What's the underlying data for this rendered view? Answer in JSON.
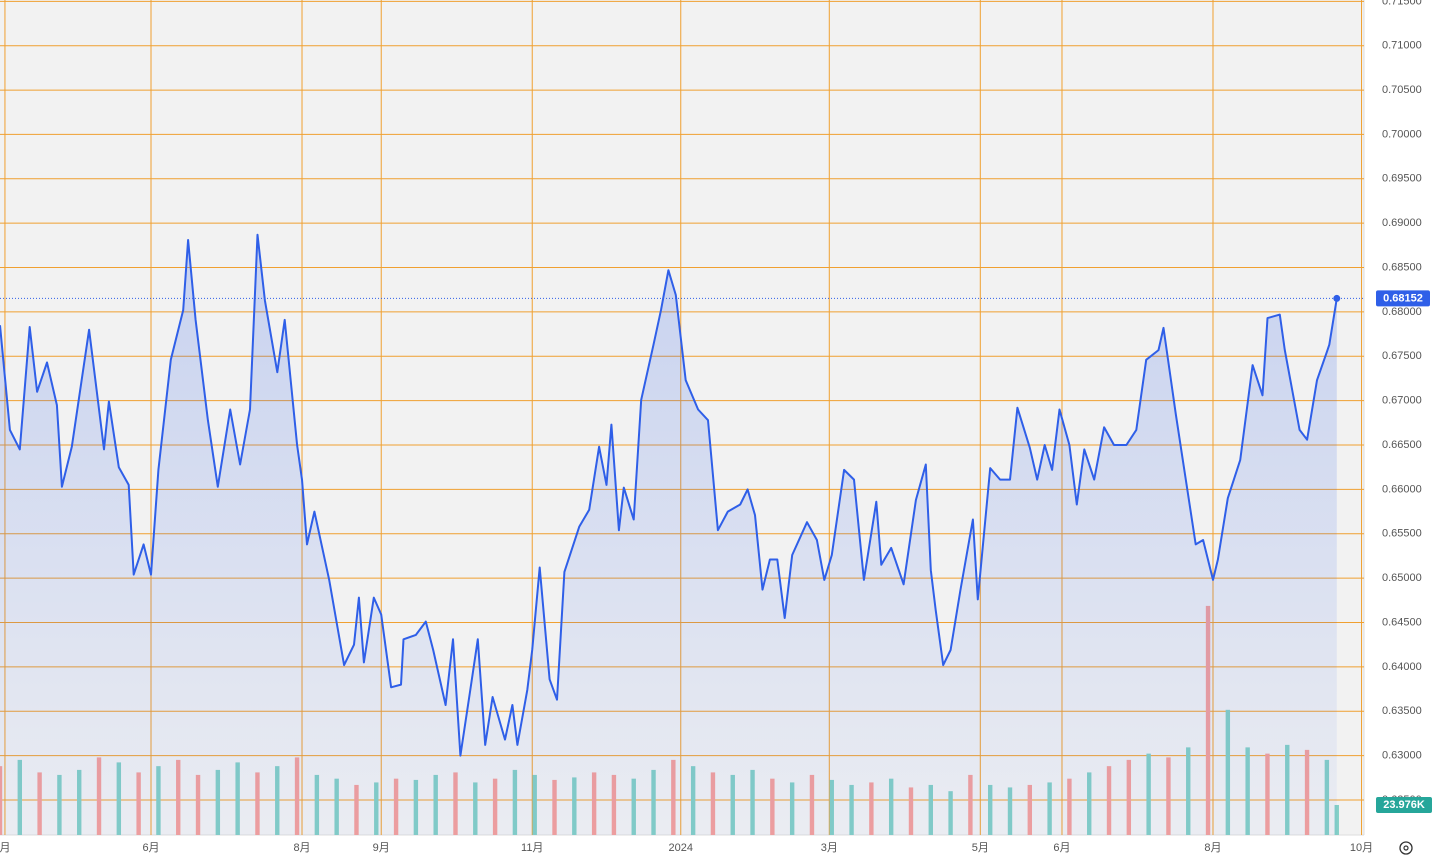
{
  "chart_data": {
    "type": "line",
    "line_color": "#2f5fe8",
    "area_color": "#2f5fe8",
    "grid": true,
    "grid_color": "#f0a030",
    "x": [
      0,
      4,
      8,
      12,
      15,
      19,
      23,
      25,
      29,
      36,
      42,
      44,
      48,
      52,
      54,
      58,
      61,
      64,
      69,
      74,
      76,
      79,
      84,
      88,
      93,
      97,
      101,
      104,
      107,
      112,
      115,
      120,
      122,
      124,
      127,
      133,
      139,
      143,
      145,
      147,
      151,
      154,
      158,
      162,
      163,
      168,
      172,
      175,
      180,
      183,
      186,
      190,
      193,
      196,
      199,
      204,
      207,
      209,
      213,
      215,
      218,
      222,
      225,
      228,
      234,
      238,
      242,
      245,
      247,
      250,
      252,
      256,
      259,
      264,
      267,
      270,
      273,
      277,
      282,
      286,
      290,
      294,
      299,
      302,
      305,
      308,
      311,
      314,
      317,
      320,
      326,
      330,
      333,
      336,
      341,
      345,
      349,
      354,
      356,
      360,
      365,
      370,
      374,
      376,
      378,
      381,
      384,
      388,
      393,
      395,
      400,
      404,
      408,
      411,
      416,
      419,
      422,
      425,
      428,
      432,
      435,
      438,
      442,
      446,
      450,
      455,
      459,
      463,
      468,
      470,
      475,
      479,
      483,
      486,
      490,
      492,
      496,
      501,
      506,
      510,
      512,
      517,
      519,
      522,
      525,
      528,
      532,
      536,
      537,
      540
    ],
    "values": [
      0.6785,
      0.6667,
      0.6645,
      0.6783,
      0.671,
      0.6743,
      0.6695,
      0.6603,
      0.6648,
      0.678,
      0.6645,
      0.6699,
      0.6625,
      0.6605,
      0.6504,
      0.6538,
      0.6504,
      0.6622,
      0.6746,
      0.6802,
      0.6881,
      0.6791,
      0.6678,
      0.6603,
      0.669,
      0.6628,
      0.669,
      0.6887,
      0.6813,
      0.6732,
      0.6791,
      0.665,
      0.6611,
      0.6538,
      0.6575,
      0.6498,
      0.6402,
      0.6425,
      0.6478,
      0.6405,
      0.6478,
      0.6459,
      0.6377,
      0.638,
      0.6431,
      0.6436,
      0.6451,
      0.6419,
      0.6357,
      0.6431,
      0.63,
      0.6374,
      0.6431,
      0.6312,
      0.6366,
      0.6318,
      0.6357,
      0.6312,
      0.6374,
      0.6419,
      0.6512,
      0.6386,
      0.6363,
      0.6507,
      0.6558,
      0.6577,
      0.6648,
      0.6605,
      0.6673,
      0.6554,
      0.6602,
      0.6566,
      0.6701,
      0.6763,
      0.6802,
      0.6847,
      0.6819,
      0.6723,
      0.669,
      0.6678,
      0.6554,
      0.6575,
      0.6583,
      0.66,
      0.6571,
      0.6487,
      0.6521,
      0.6521,
      0.6455,
      0.6526,
      0.6563,
      0.6543,
      0.6498,
      0.6526,
      0.6622,
      0.6611,
      0.6498,
      0.6586,
      0.6515,
      0.6534,
      0.6493,
      0.6588,
      0.6628,
      0.6509,
      0.6464,
      0.6402,
      0.6419,
      0.6487,
      0.6566,
      0.6476,
      0.6624,
      0.6611,
      0.6611,
      0.6692,
      0.6647,
      0.6611,
      0.665,
      0.6622,
      0.669,
      0.665,
      0.6583,
      0.6645,
      0.6611,
      0.667,
      0.665,
      0.665,
      0.6667,
      0.6746,
      0.6757,
      0.6782,
      0.6684,
      0.6611,
      0.6538,
      0.6543,
      0.6498,
      0.6521,
      0.659,
      0.6633,
      0.674,
      0.6706,
      0.6793,
      0.6797,
      0.6757,
      0.6712,
      0.6667,
      0.6656,
      0.6723,
      0.6755,
      0.6763,
      0.68152
    ],
    "xlim": [
      0,
      551
    ],
    "xticks": [
      {
        "value": 2,
        "label": "月"
      },
      {
        "value": 61,
        "label": "6月"
      },
      {
        "value": 122,
        "label": "8月"
      },
      {
        "value": 154,
        "label": "9月"
      },
      {
        "value": 215,
        "label": "11月"
      },
      {
        "value": 275,
        "label": "2024"
      },
      {
        "value": 335,
        "label": "3月"
      },
      {
        "value": 396,
        "label": "5月"
      },
      {
        "value": 429,
        "label": "6月"
      },
      {
        "value": 490,
        "label": "8月"
      },
      {
        "value": 550,
        "label": "10月"
      }
    ],
    "ylim": [
      0.62105,
      0.71515
    ],
    "yticks": [
      {
        "value": 0.625,
        "label": "0.62500"
      },
      {
        "value": 0.63,
        "label": "0.63000"
      },
      {
        "value": 0.635,
        "label": "0.63500"
      },
      {
        "value": 0.64,
        "label": "0.64000"
      },
      {
        "value": 0.645,
        "label": "0.64500"
      },
      {
        "value": 0.65,
        "label": "0.65000"
      },
      {
        "value": 0.655,
        "label": "0.65500"
      },
      {
        "value": 0.66,
        "label": "0.66000"
      },
      {
        "value": 0.665,
        "label": "0.66500"
      },
      {
        "value": 0.67,
        "label": "0.67000"
      },
      {
        "value": 0.675,
        "label": "0.67500"
      },
      {
        "value": 0.68,
        "label": "0.68000"
      },
      {
        "value": 0.685,
        "label": "0.68500"
      },
      {
        "value": 0.69,
        "label": "0.69000"
      },
      {
        "value": 0.695,
        "label": "0.69500"
      },
      {
        "value": 0.7,
        "label": "0.70000"
      },
      {
        "value": 0.705,
        "label": "0.70500"
      },
      {
        "value": 0.71,
        "label": "0.71000"
      },
      {
        "value": 0.715,
        "label": "0.71500"
      }
    ],
    "y2lim": [
      0,
      667
    ],
    "volume": {
      "x": [
        0,
        8,
        16,
        24,
        32,
        40,
        48,
        56,
        64,
        72,
        80,
        88,
        96,
        104,
        112,
        120,
        128,
        136,
        144,
        152,
        160,
        168,
        176,
        184,
        192,
        200,
        208,
        216,
        224,
        232,
        240,
        248,
        256,
        264,
        272,
        280,
        288,
        296,
        304,
        312,
        320,
        328,
        336,
        344,
        352,
        360,
        368,
        376,
        384,
        392,
        400,
        408,
        416,
        424,
        432,
        440,
        448,
        456,
        464,
        472,
        480,
        488,
        496,
        504,
        512,
        520,
        528,
        536,
        540
      ],
      "values": [
        55,
        60,
        50,
        48,
        52,
        62,
        58,
        50,
        55,
        60,
        48,
        52,
        58,
        50,
        55,
        62,
        48,
        45,
        40,
        42,
        45,
        44,
        48,
        50,
        42,
        45,
        52,
        48,
        44,
        46,
        50,
        48,
        45,
        52,
        60,
        55,
        50,
        48,
        52,
        45,
        42,
        48,
        44,
        40,
        42,
        45,
        38,
        40,
        35,
        48,
        40,
        38,
        40,
        42,
        45,
        50,
        55,
        60,
        65,
        62,
        70,
        183,
        100,
        70,
        65,
        72,
        68,
        60,
        23.976
      ],
      "value_labels": [
        null,
        null,
        null,
        null,
        null,
        null,
        null,
        null,
        null,
        null,
        null,
        null,
        null,
        null,
        null,
        null,
        null,
        null,
        null,
        null,
        null,
        null,
        null,
        null,
        null,
        null,
        null,
        null,
        null,
        null,
        null,
        null,
        null,
        null,
        null,
        null,
        null,
        null,
        null,
        null,
        null,
        null,
        null,
        null,
        null,
        null,
        null,
        null,
        null,
        null,
        null,
        null,
        null,
        null,
        null,
        null,
        null,
        null,
        null,
        null,
        null,
        null,
        null,
        null,
        null,
        null,
        null,
        null,
        "23.976K"
      ],
      "colors": [
        "#f4a09c",
        "#84cfc6",
        "#f4a09c",
        "#84cfc6",
        "#84cfc6",
        "#f4a09c",
        "#84cfc6",
        "#f4a09c",
        "#84cfc6",
        "#f4a09c",
        "#f4a09c",
        "#84cfc6",
        "#84cfc6",
        "#f4a09c",
        "#84cfc6",
        "#f4a09c",
        "#84cfc6",
        "#84cfc6",
        "#f4a09c",
        "#84cfc6",
        "#f4a09c",
        "#84cfc6",
        "#84cfc6",
        "#f4a09c",
        "#84cfc6",
        "#f4a09c",
        "#84cfc6",
        "#84cfc6",
        "#f4a09c",
        "#84cfc6",
        "#f4a09c",
        "#f4a09c",
        "#84cfc6",
        "#84cfc6",
        "#f4a09c",
        "#84cfc6",
        "#f4a09c",
        "#84cfc6",
        "#84cfc6",
        "#f4a09c",
        "#84cfc6",
        "#f4a09c",
        "#84cfc6",
        "#84cfc6",
        "#f4a09c",
        "#84cfc6",
        "#f4a09c",
        "#84cfc6",
        "#84cfc6",
        "#f4a09c",
        "#84cfc6",
        "#84cfc6",
        "#f4a09c",
        "#84cfc6",
        "#f4a09c",
        "#84cfc6",
        "#f4a09c",
        "#f4a09c",
        "#84cfc6",
        "#f4a09c",
        "#84cfc6",
        "#f4a09c",
        "#84cfc6",
        "#84cfc6",
        "#f4a09c",
        "#84cfc6",
        "#f4a09c",
        "#84cfc6",
        "#84cfc6"
      ],
      "label_color": "#26a69a"
    }
  }
}
